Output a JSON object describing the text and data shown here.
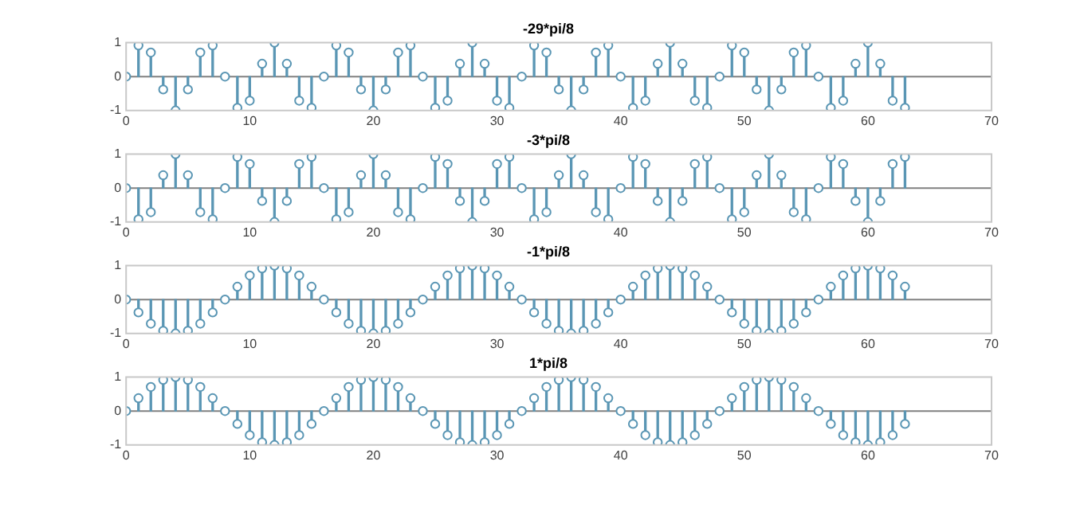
{
  "chart_data": [
    {
      "type": "lollipop",
      "title": "-29*pi/8",
      "x": [
        0,
        1,
        2,
        3,
        4,
        5,
        6,
        7,
        8,
        9,
        10,
        11,
        12,
        13,
        14,
        15,
        16,
        17,
        18,
        19,
        20,
        21,
        22,
        23,
        24,
        25,
        26,
        27,
        28,
        29,
        30,
        31,
        32,
        33,
        34,
        35,
        36,
        37,
        38,
        39,
        40,
        41,
        42,
        43,
        44,
        45,
        46,
        47,
        48,
        49,
        50,
        51,
        52,
        53,
        54,
        55,
        56,
        57,
        58,
        59,
        60,
        61,
        62,
        63
      ],
      "xlim": [
        0,
        70
      ],
      "xticks": [
        0,
        10,
        20,
        30,
        40,
        50,
        60,
        70
      ],
      "ylim": [
        -1,
        1
      ],
      "yticks": [
        -1,
        0,
        1
      ],
      "marker": "circle",
      "grid": false,
      "legend": false,
      "ref_lines": [
        {
          "axis": "y",
          "value": 0,
          "color": "#808080"
        }
      ],
      "series": [
        {
          "color": "#5a96b4",
          "values": [
            0,
            0.92,
            0.71,
            -0.38,
            -1,
            -0.38,
            0.71,
            0.92,
            0,
            -0.92,
            -0.71,
            0.38,
            1,
            0.38,
            -0.71,
            -0.92,
            0,
            0.92,
            0.71,
            -0.38,
            -1,
            -0.38,
            0.71,
            0.92,
            0,
            -0.92,
            -0.71,
            0.38,
            1,
            0.38,
            -0.71,
            -0.92,
            0,
            0.92,
            0.71,
            -0.38,
            -1,
            -0.38,
            0.71,
            0.92,
            0,
            -0.92,
            -0.71,
            0.38,
            1,
            0.38,
            -0.71,
            -0.92,
            0,
            0.92,
            0.71,
            -0.38,
            -1,
            -0.38,
            0.71,
            0.92,
            0,
            -0.92,
            -0.71,
            0.38,
            1,
            0.38,
            -0.71,
            -0.92
          ]
        }
      ]
    },
    {
      "type": "lollipop",
      "title": "-3*pi/8",
      "x": [
        0,
        1,
        2,
        3,
        4,
        5,
        6,
        7,
        8,
        9,
        10,
        11,
        12,
        13,
        14,
        15,
        16,
        17,
        18,
        19,
        20,
        21,
        22,
        23,
        24,
        25,
        26,
        27,
        28,
        29,
        30,
        31,
        32,
        33,
        34,
        35,
        36,
        37,
        38,
        39,
        40,
        41,
        42,
        43,
        44,
        45,
        46,
        47,
        48,
        49,
        50,
        51,
        52,
        53,
        54,
        55,
        56,
        57,
        58,
        59,
        60,
        61,
        62,
        63
      ],
      "xlim": [
        0,
        70
      ],
      "xticks": [
        0,
        10,
        20,
        30,
        40,
        50,
        60,
        70
      ],
      "ylim": [
        -1,
        1
      ],
      "yticks": [
        -1,
        0,
        1
      ],
      "marker": "circle",
      "grid": false,
      "legend": false,
      "ref_lines": [
        {
          "axis": "y",
          "value": 0,
          "color": "#808080"
        }
      ],
      "series": [
        {
          "color": "#5a96b4",
          "values": [
            0,
            -0.92,
            -0.71,
            0.38,
            1,
            0.38,
            -0.71,
            -0.92,
            0,
            0.92,
            0.71,
            -0.38,
            -1,
            -0.38,
            0.71,
            0.92,
            0,
            -0.92,
            -0.71,
            0.38,
            1,
            0.38,
            -0.71,
            -0.92,
            0,
            0.92,
            0.71,
            -0.38,
            -1,
            -0.38,
            0.71,
            0.92,
            0,
            -0.92,
            -0.71,
            0.38,
            1,
            0.38,
            -0.71,
            -0.92,
            0,
            0.92,
            0.71,
            -0.38,
            -1,
            -0.38,
            0.71,
            0.92,
            0,
            -0.92,
            -0.71,
            0.38,
            1,
            0.38,
            -0.71,
            -0.92,
            0,
            0.92,
            0.71,
            -0.38,
            -1,
            -0.38,
            0.71,
            0.92
          ]
        }
      ]
    },
    {
      "type": "lollipop",
      "title": "-1*pi/8",
      "x": [
        0,
        1,
        2,
        3,
        4,
        5,
        6,
        7,
        8,
        9,
        10,
        11,
        12,
        13,
        14,
        15,
        16,
        17,
        18,
        19,
        20,
        21,
        22,
        23,
        24,
        25,
        26,
        27,
        28,
        29,
        30,
        31,
        32,
        33,
        34,
        35,
        36,
        37,
        38,
        39,
        40,
        41,
        42,
        43,
        44,
        45,
        46,
        47,
        48,
        49,
        50,
        51,
        52,
        53,
        54,
        55,
        56,
        57,
        58,
        59,
        60,
        61,
        62,
        63
      ],
      "xlim": [
        0,
        70
      ],
      "xticks": [
        0,
        10,
        20,
        30,
        40,
        50,
        60,
        70
      ],
      "ylim": [
        -1,
        1
      ],
      "yticks": [
        -1,
        0,
        1
      ],
      "marker": "circle",
      "grid": false,
      "legend": false,
      "ref_lines": [
        {
          "axis": "y",
          "value": 0,
          "color": "#808080"
        }
      ],
      "series": [
        {
          "color": "#5a96b4",
          "values": [
            0,
            -0.38,
            -0.71,
            -0.92,
            -1,
            -0.92,
            -0.71,
            -0.38,
            0,
            0.38,
            0.71,
            0.92,
            1,
            0.92,
            0.71,
            0.38,
            0,
            -0.38,
            -0.71,
            -0.92,
            -1,
            -0.92,
            -0.71,
            -0.38,
            0,
            0.38,
            0.71,
            0.92,
            1,
            0.92,
            0.71,
            0.38,
            0,
            -0.38,
            -0.71,
            -0.92,
            -1,
            -0.92,
            -0.71,
            -0.38,
            0,
            0.38,
            0.71,
            0.92,
            1,
            0.92,
            0.71,
            0.38,
            0,
            -0.38,
            -0.71,
            -0.92,
            -1,
            -0.92,
            -0.71,
            -0.38,
            0,
            0.38,
            0.71,
            0.92,
            1,
            0.92,
            0.71,
            0.38
          ]
        }
      ]
    },
    {
      "type": "lollipop",
      "title": "1*pi/8",
      "x": [
        0,
        1,
        2,
        3,
        4,
        5,
        6,
        7,
        8,
        9,
        10,
        11,
        12,
        13,
        14,
        15,
        16,
        17,
        18,
        19,
        20,
        21,
        22,
        23,
        24,
        25,
        26,
        27,
        28,
        29,
        30,
        31,
        32,
        33,
        34,
        35,
        36,
        37,
        38,
        39,
        40,
        41,
        42,
        43,
        44,
        45,
        46,
        47,
        48,
        49,
        50,
        51,
        52,
        53,
        54,
        55,
        56,
        57,
        58,
        59,
        60,
        61,
        62,
        63
      ],
      "xlim": [
        0,
        70
      ],
      "xticks": [
        0,
        10,
        20,
        30,
        40,
        50,
        60,
        70
      ],
      "ylim": [
        -1,
        1
      ],
      "yticks": [
        -1,
        0,
        1
      ],
      "marker": "circle",
      "grid": false,
      "legend": false,
      "ref_lines": [
        {
          "axis": "y",
          "value": 0,
          "color": "#808080"
        }
      ],
      "series": [
        {
          "color": "#5a96b4",
          "values": [
            0,
            0.38,
            0.71,
            0.92,
            1,
            0.92,
            0.71,
            0.38,
            0,
            -0.38,
            -0.71,
            -0.92,
            -1,
            -0.92,
            -0.71,
            -0.38,
            0,
            0.38,
            0.71,
            0.92,
            1,
            0.92,
            0.71,
            0.38,
            0,
            -0.38,
            -0.71,
            -0.92,
            -1,
            -0.92,
            -0.71,
            -0.38,
            0,
            0.38,
            0.71,
            0.92,
            1,
            0.92,
            0.71,
            0.38,
            0,
            -0.38,
            -0.71,
            -0.92,
            -1,
            -0.92,
            -0.71,
            -0.38,
            0,
            0.38,
            0.71,
            0.92,
            1,
            0.92,
            0.71,
            0.38,
            0,
            -0.38,
            -0.71,
            -0.92,
            -1,
            -0.92,
            -0.71,
            -0.38
          ]
        }
      ]
    }
  ]
}
